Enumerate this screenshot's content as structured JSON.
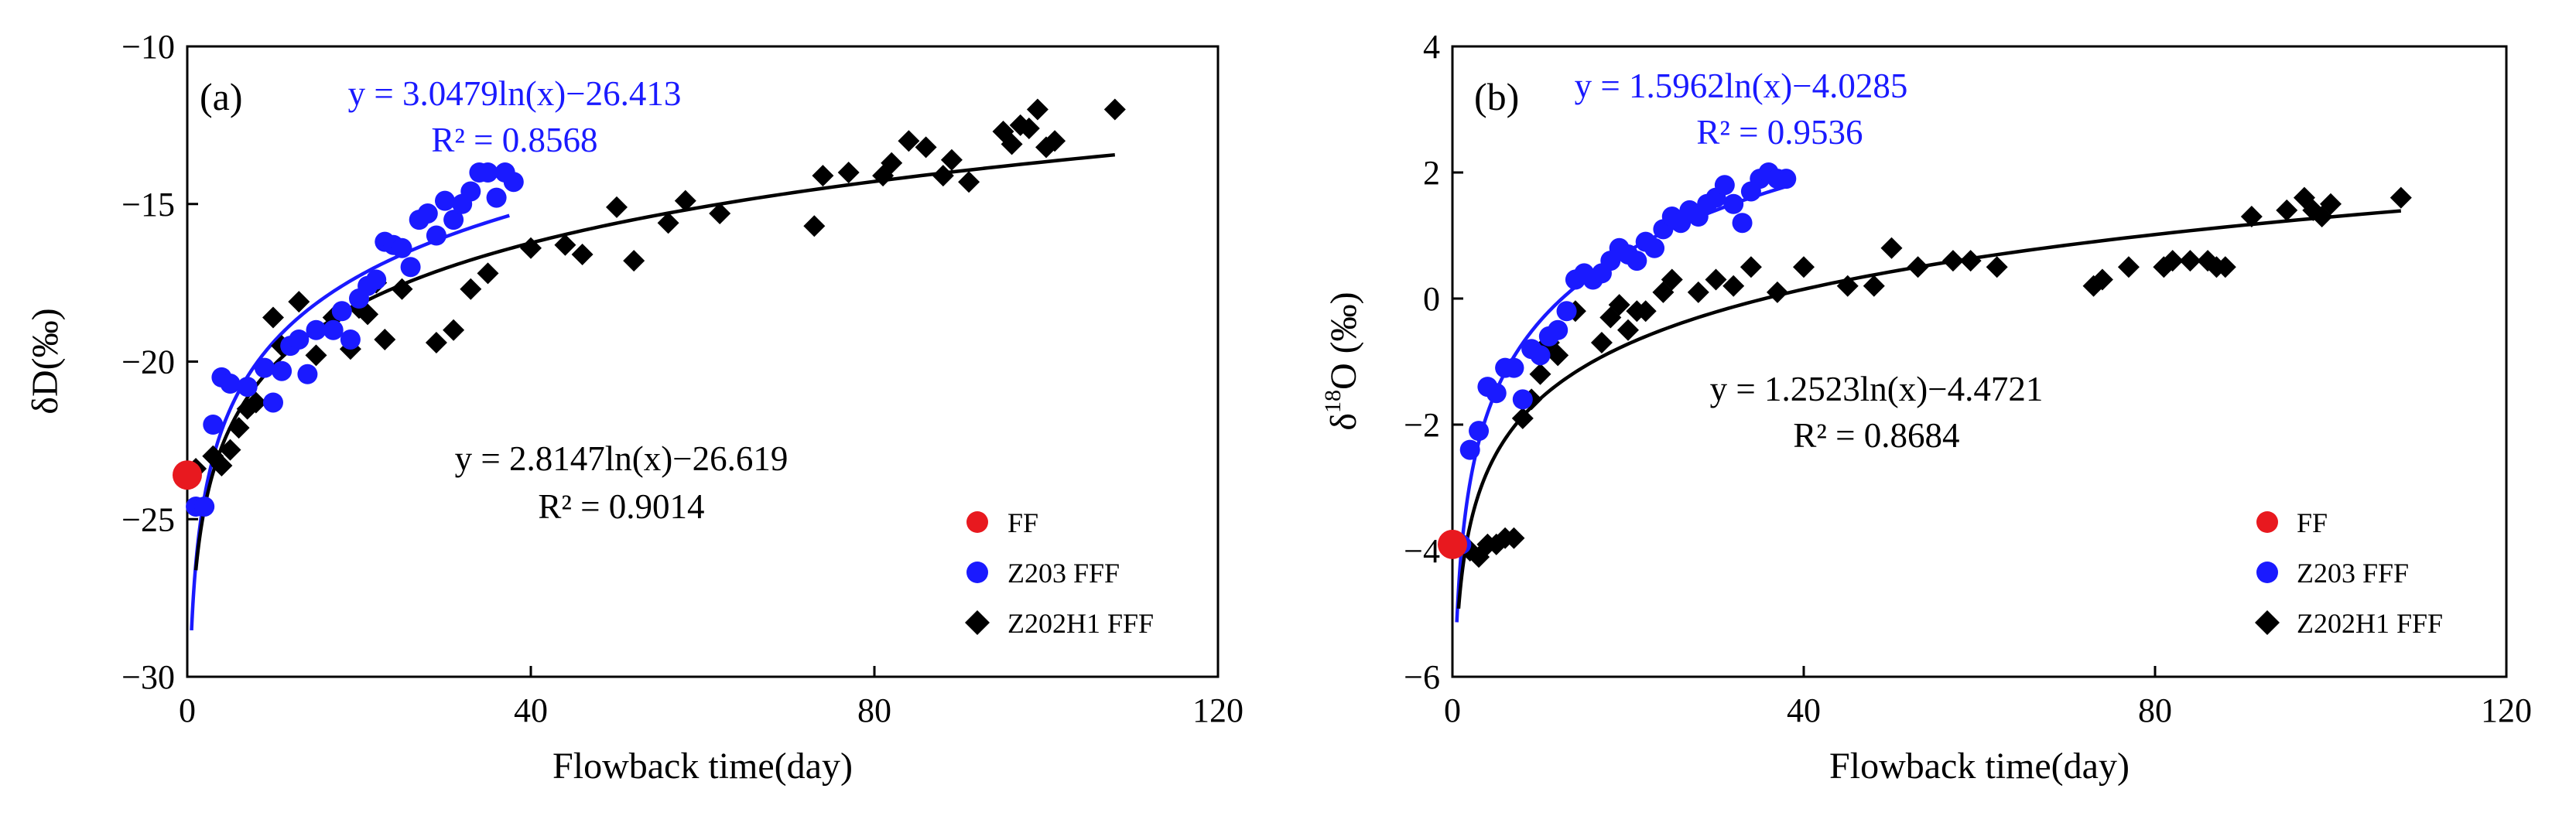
{
  "colors": {
    "ff": "#e8191f",
    "z203": "#1a1aff",
    "z202h1": "#000000",
    "axis": "#000000"
  },
  "chart_data": [
    {
      "type": "scatter",
      "panel_label": "(a)",
      "xlabel": "Flowback time(day)",
      "ylabel": "δD(‰)",
      "xlim": [
        0,
        120
      ],
      "ylim": [
        -30,
        -10
      ],
      "xticks": [
        0,
        40,
        80,
        120
      ],
      "yticks": [
        -30,
        -25,
        -20,
        -15,
        -10
      ],
      "xtick_labels": [
        "0",
        "40",
        "80",
        "120"
      ],
      "ytick_labels": [
        "−30",
        "−25",
        "−20",
        "−15",
        "−10"
      ],
      "legend": [
        "FF",
        "Z203 FFF",
        "Z202H1 FFF"
      ],
      "series": [
        {
          "name": "FF",
          "marker": "circle-large",
          "color": "#e8191f",
          "x": [
            0
          ],
          "y": [
            -23.6
          ]
        },
        {
          "name": "Z203 FFF",
          "marker": "circle",
          "color": "#1a1aff",
          "x": [
            1,
            2,
            3,
            4,
            5,
            7,
            9,
            10,
            11,
            12,
            13,
            14,
            15,
            17,
            18,
            19,
            20,
            21,
            22,
            23,
            24,
            25,
            26,
            27,
            28,
            29,
            30,
            31,
            32,
            33,
            34,
            35,
            36,
            37,
            38
          ],
          "y": [
            -24.6,
            -24.6,
            -22.0,
            -20.5,
            -20.7,
            -20.8,
            -20.2,
            -21.3,
            -20.3,
            -19.5,
            -19.3,
            -20.4,
            -19.0,
            -19.0,
            -18.4,
            -19.3,
            -18.0,
            -17.6,
            -17.4,
            -16.2,
            -16.3,
            -16.4,
            -17.0,
            -15.5,
            -15.3,
            -16.0,
            -14.9,
            -15.5,
            -15.0,
            -14.6,
            -14.0,
            -14.0,
            -14.8,
            -14.0,
            -14.3
          ]
        },
        {
          "name": "Z202H1 FFF",
          "marker": "diamond",
          "color": "#000000",
          "x": [
            1,
            3,
            4,
            5,
            6,
            7,
            8,
            10,
            11,
            13,
            15,
            17,
            19,
            20,
            21,
            22,
            23,
            25,
            29,
            31,
            33,
            35,
            40,
            44,
            46,
            50,
            52,
            56,
            58,
            62,
            73,
            74,
            77,
            81,
            82,
            84,
            86,
            88,
            89,
            91,
            95,
            96,
            97,
            98,
            99,
            100,
            101,
            108
          ],
          "y": [
            -23.4,
            -23.0,
            -23.3,
            -22.8,
            -22.1,
            -21.5,
            -21.3,
            -18.6,
            -19.5,
            -18.1,
            -19.8,
            -18.6,
            -19.6,
            -18.3,
            -18.5,
            -17.5,
            -19.3,
            -17.7,
            -19.4,
            -19.0,
            -17.7,
            -17.2,
            -16.4,
            -16.3,
            -16.6,
            -15.1,
            -16.8,
            -15.6,
            -14.9,
            -15.3,
            -15.7,
            -14.1,
            -14.0,
            -14.1,
            -13.7,
            -13.0,
            -13.2,
            -14.1,
            -13.6,
            -14.3,
            -12.7,
            -13.1,
            -12.5,
            -12.6,
            -12.0,
            -13.2,
            -13.0,
            -12.0
          ]
        }
      ],
      "fits": [
        {
          "series": "Z203 FFF",
          "a": 3.0479,
          "b": -26.413,
          "x_range": [
            0.5,
            37.5
          ],
          "color": "#1a1aff",
          "equation": "y = 3.0479ln(x)−26.413",
          "r2": "R² = 0.8568"
        },
        {
          "series": "Z202H1 FFF",
          "a": 2.8147,
          "b": -26.619,
          "x_range": [
            1,
            108
          ],
          "color": "#000000",
          "equation": "y = 2.8147ln(x)−26.619",
          "r2": "R² = 0.9014"
        }
      ]
    },
    {
      "type": "scatter",
      "panel_label": "(b)",
      "xlabel": "Flowback time(day)",
      "ylabel_prefix": "δ",
      "ylabel_sup": "18",
      "ylabel_suffix": "O (‰)",
      "xlim": [
        0,
        120
      ],
      "ylim": [
        -6,
        4
      ],
      "xticks": [
        0,
        40,
        80,
        120
      ],
      "yticks": [
        -6,
        -4,
        -2,
        0,
        2,
        4
      ],
      "xtick_labels": [
        "0",
        "40",
        "80",
        "120"
      ],
      "ytick_labels": [
        "−6",
        "−4",
        "−2",
        "0",
        "2",
        "4"
      ],
      "legend": [
        "FF",
        "Z203 FFF",
        "Z202H1 FFF"
      ],
      "series": [
        {
          "name": "FF",
          "marker": "circle-large",
          "color": "#e8191f",
          "x": [
            0
          ],
          "y": [
            -3.9
          ]
        },
        {
          "name": "Z203 FFF",
          "marker": "circle",
          "color": "#1a1aff",
          "x": [
            1,
            2,
            3,
            4,
            5,
            6,
            7,
            8,
            9,
            10,
            11,
            12,
            13,
            14,
            15,
            16,
            17,
            18,
            19,
            20,
            21,
            22,
            23,
            24,
            25,
            26,
            27,
            28,
            29,
            30,
            31,
            32,
            33,
            34,
            35,
            36,
            37,
            38
          ],
          "y": [
            -3.9,
            -2.4,
            -2.1,
            -1.4,
            -1.5,
            -1.1,
            -1.1,
            -1.6,
            -0.8,
            -0.9,
            -0.6,
            -0.5,
            -0.2,
            0.3,
            0.4,
            0.3,
            0.4,
            0.6,
            0.8,
            0.7,
            0.6,
            0.9,
            0.8,
            1.1,
            1.3,
            1.2,
            1.4,
            1.3,
            1.5,
            1.6,
            1.8,
            1.5,
            1.2,
            1.7,
            1.9,
            2.0,
            1.9,
            1.9
          ]
        },
        {
          "name": "Z202H1 FFF",
          "marker": "diamond",
          "color": "#000000",
          "x": [
            2,
            3,
            4,
            5,
            6,
            7,
            8,
            9,
            10,
            11,
            12,
            14,
            17,
            18,
            19,
            20,
            21,
            22,
            24,
            25,
            28,
            30,
            32,
            34,
            37,
            40,
            45,
            48,
            50,
            53,
            57,
            59,
            62,
            73,
            74,
            77,
            81,
            82,
            84,
            86,
            87,
            88,
            91,
            95,
            97,
            98,
            99,
            100,
            108
          ],
          "y": [
            -4.0,
            -4.1,
            -3.9,
            -3.9,
            -3.8,
            -3.8,
            -1.9,
            -1.6,
            -1.2,
            -0.7,
            -0.9,
            -0.2,
            -0.7,
            -0.3,
            -0.1,
            -0.5,
            -0.2,
            -0.2,
            0.1,
            0.3,
            0.1,
            0.3,
            0.2,
            0.5,
            0.1,
            0.5,
            0.2,
            0.2,
            0.8,
            0.5,
            0.6,
            0.6,
            0.5,
            0.2,
            0.3,
            0.5,
            0.5,
            0.6,
            0.6,
            0.6,
            0.5,
            0.5,
            1.3,
            1.4,
            1.6,
            1.4,
            1.3,
            1.5,
            1.6
          ]
        }
      ],
      "fits": [
        {
          "series": "Z203 FFF",
          "a": 1.5962,
          "b": -4.0285,
          "x_range": [
            0.5,
            38
          ],
          "color": "#1a1aff",
          "equation": "y = 1.5962ln(x)−4.0285",
          "r2": "R² = 0.9536"
        },
        {
          "series": "Z202H1 FFF",
          "a": 1.2523,
          "b": -4.4721,
          "x_range": [
            0.7,
            108
          ],
          "color": "#000000",
          "equation": "y = 1.2523ln(x)−4.4721",
          "r2": "R² = 0.8684"
        }
      ]
    }
  ]
}
